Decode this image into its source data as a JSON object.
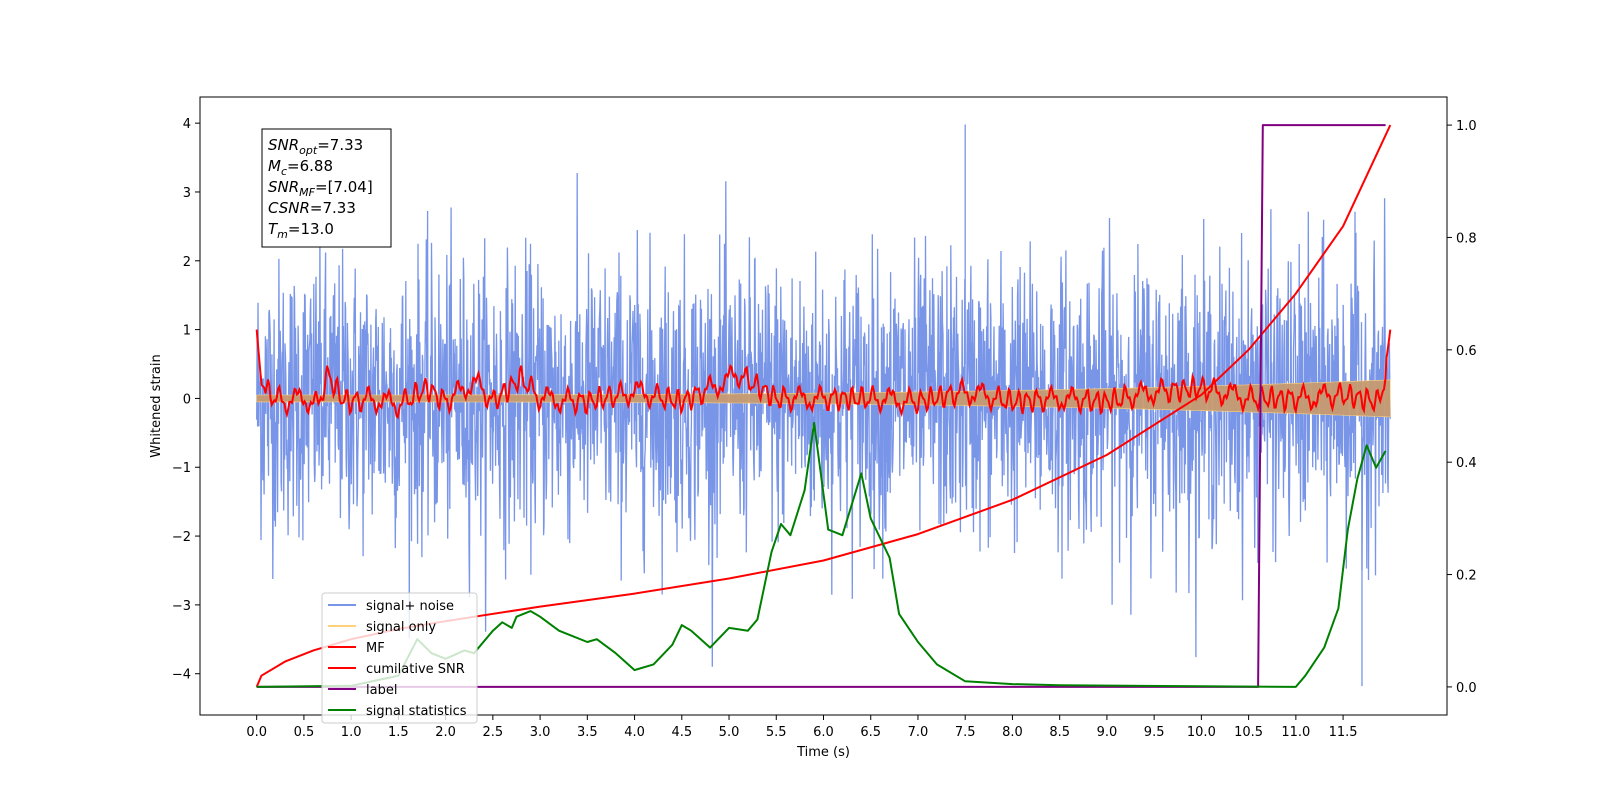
{
  "chart_data": {
    "type": "line",
    "xlabel": "Time (s)",
    "ylabel": "Whitened strain",
    "xlim": [
      -0.6,
      12.6
    ],
    "ylim": [
      -4.6,
      4.38
    ],
    "y2lim": [
      -0.05,
      1.05
    ],
    "xticks": [
      "0.0",
      "0.5",
      "1.0",
      "1.5",
      "2.0",
      "2.5",
      "3.0",
      "3.5",
      "4.0",
      "4.5",
      "5.0",
      "5.5",
      "6.0",
      "6.5",
      "7.0",
      "7.5",
      "8.0",
      "8.5",
      "9.0",
      "9.5",
      "10.0",
      "10.5",
      "11.0",
      "11.5"
    ],
    "yticks": [
      "4",
      "3",
      "2",
      "1",
      "0",
      "−1",
      "−2",
      "−3",
      "−4"
    ],
    "y2ticks": [
      "1.0",
      "0.8",
      "0.6",
      "0.4",
      "0.2",
      "0.0"
    ],
    "annotation": {
      "lines": [
        {
          "base": "SNR",
          "sub": "opt",
          "value": "=7.33"
        },
        {
          "base": "M",
          "sub": "c",
          "value": "=6.88"
        },
        {
          "base": "SNR",
          "sub": "MF",
          "value": "=[7.04]"
        },
        {
          "base": "CSNR",
          "sub": "",
          "value": "=7.33"
        },
        {
          "base": "T",
          "sub": "m",
          "value": "=13.0"
        }
      ]
    },
    "legend": {
      "placement": "lower-left",
      "entries": [
        {
          "label": "signal+ noise",
          "color": "#7895e8"
        },
        {
          "label": "signal only",
          "color": "#ffd27a"
        },
        {
          "label": "MF",
          "color": "#ff0000"
        },
        {
          "label": "cumilative SNR",
          "color": "#ff0000"
        },
        {
          "label": "label",
          "color": "#800080"
        },
        {
          "label": "signal statistics",
          "color": "#008000"
        }
      ]
    },
    "series": [
      {
        "name": "signal+ noise",
        "axis": "left",
        "color": "#7895e8",
        "t_range": [
          0,
          12
        ],
        "amplitude_typical": 1.0,
        "max": 3.98,
        "min": -4.18
      },
      {
        "name": "signal only",
        "axis": "left",
        "color": "#ffd27a",
        "t_range": [
          0,
          12
        ],
        "envelope_start": 0.05,
        "envelope_end": 0.27
      },
      {
        "name": "MF",
        "axis": "left",
        "color": "#ff0000",
        "points": [
          [
            0.0,
            1.0
          ],
          [
            0.05,
            0.2
          ],
          [
            0.15,
            0.05
          ],
          [
            0.3,
            -0.05
          ],
          [
            0.5,
            0.0
          ],
          [
            0.65,
            -0.1
          ],
          [
            0.75,
            0.35
          ],
          [
            0.9,
            0.0
          ],
          [
            1.0,
            -0.05
          ],
          [
            1.2,
            0.0
          ],
          [
            1.5,
            -0.1
          ],
          [
            1.8,
            0.15
          ],
          [
            2.0,
            -0.05
          ],
          [
            2.3,
            0.25
          ],
          [
            2.5,
            -0.05
          ],
          [
            2.8,
            0.3
          ],
          [
            3.0,
            0.0
          ],
          [
            3.5,
            -0.05
          ],
          [
            4.0,
            0.1
          ],
          [
            4.5,
            -0.05
          ],
          [
            5.1,
            0.35
          ],
          [
            5.5,
            0.0
          ],
          [
            6.0,
            0.0
          ],
          [
            6.5,
            0.0
          ],
          [
            7.0,
            -0.05
          ],
          [
            7.5,
            0.1
          ],
          [
            8.0,
            -0.05
          ],
          [
            8.5,
            0.0
          ],
          [
            9.0,
            -0.05
          ],
          [
            9.5,
            0.1
          ],
          [
            10.0,
            0.15
          ],
          [
            10.5,
            0.0
          ],
          [
            11.0,
            0.0
          ],
          [
            11.5,
            0.05
          ],
          [
            11.9,
            -0.05
          ],
          [
            12.0,
            1.0
          ]
        ]
      },
      {
        "name": "cumilative SNR",
        "axis": "right",
        "color": "#ff0000",
        "points": [
          [
            0.0,
            0.0
          ],
          [
            0.05,
            0.02
          ],
          [
            0.3,
            0.045
          ],
          [
            0.6,
            0.065
          ],
          [
            1.0,
            0.085
          ],
          [
            1.5,
            0.103
          ],
          [
            2.0,
            0.117
          ],
          [
            3.0,
            0.143
          ],
          [
            4.0,
            0.166
          ],
          [
            5.0,
            0.193
          ],
          [
            6.0,
            0.225
          ],
          [
            7.0,
            0.272
          ],
          [
            8.0,
            0.333
          ],
          [
            9.0,
            0.413
          ],
          [
            10.0,
            0.52
          ],
          [
            10.5,
            0.6
          ],
          [
            11.0,
            0.7
          ],
          [
            11.5,
            0.82
          ],
          [
            12.0,
            1.0
          ]
        ]
      },
      {
        "name": "label",
        "axis": "right",
        "color": "#800080",
        "points": [
          [
            0.0,
            0.0
          ],
          [
            10.6,
            0.0
          ],
          [
            10.65,
            1.0
          ],
          [
            11.95,
            1.0
          ]
        ]
      },
      {
        "name": "signal statistics",
        "axis": "right",
        "color": "#008000",
        "points": [
          [
            0.0,
            0.0
          ],
          [
            1.0,
            0.002
          ],
          [
            1.5,
            0.02
          ],
          [
            1.7,
            0.085
          ],
          [
            1.85,
            0.06
          ],
          [
            2.0,
            0.05
          ],
          [
            2.2,
            0.065
          ],
          [
            2.3,
            0.06
          ],
          [
            2.5,
            0.1
          ],
          [
            2.6,
            0.115
          ],
          [
            2.7,
            0.105
          ],
          [
            2.75,
            0.125
          ],
          [
            2.9,
            0.135
          ],
          [
            3.0,
            0.125
          ],
          [
            3.2,
            0.1
          ],
          [
            3.5,
            0.08
          ],
          [
            3.6,
            0.085
          ],
          [
            3.8,
            0.06
          ],
          [
            4.0,
            0.03
          ],
          [
            4.2,
            0.04
          ],
          [
            4.4,
            0.075
          ],
          [
            4.5,
            0.11
          ],
          [
            4.6,
            0.1
          ],
          [
            4.8,
            0.07
          ],
          [
            5.0,
            0.105
          ],
          [
            5.2,
            0.1
          ],
          [
            5.3,
            0.12
          ],
          [
            5.45,
            0.24
          ],
          [
            5.55,
            0.29
          ],
          [
            5.65,
            0.27
          ],
          [
            5.8,
            0.35
          ],
          [
            5.9,
            0.47
          ],
          [
            6.05,
            0.28
          ],
          [
            6.2,
            0.27
          ],
          [
            6.4,
            0.38
          ],
          [
            6.5,
            0.3
          ],
          [
            6.7,
            0.23
          ],
          [
            6.8,
            0.13
          ],
          [
            7.0,
            0.08
          ],
          [
            7.2,
            0.04
          ],
          [
            7.5,
            0.01
          ],
          [
            8.0,
            0.005
          ],
          [
            8.5,
            0.003
          ],
          [
            10.0,
            0.001
          ],
          [
            11.0,
            0.0
          ],
          [
            11.1,
            0.02
          ],
          [
            11.3,
            0.07
          ],
          [
            11.45,
            0.14
          ],
          [
            11.55,
            0.28
          ],
          [
            11.65,
            0.37
          ],
          [
            11.75,
            0.43
          ],
          [
            11.85,
            0.39
          ],
          [
            11.95,
            0.42
          ]
        ]
      }
    ]
  }
}
